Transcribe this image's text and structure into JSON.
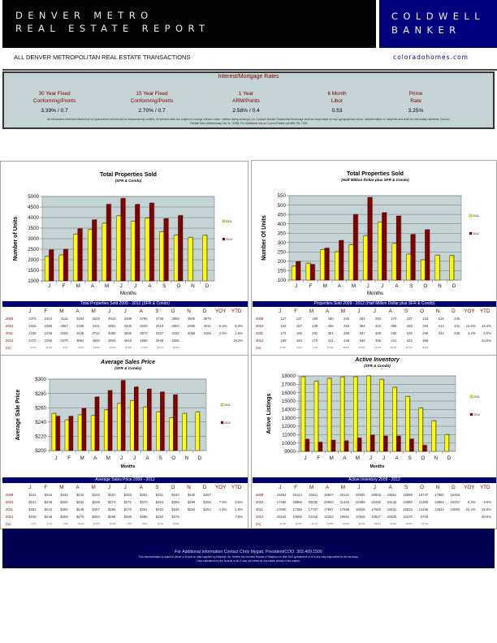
{
  "header": {
    "title_line1": "DENVER METRO",
    "title_line2": "REAL ESTATE REPORT",
    "brand_line1": "COLDWELL",
    "brand_line2": "BANKER",
    "subtitle": "ALL DENVER METROPOLITAN REAL ESTATE TRANSACTIONS",
    "website": "coloradohomes.com"
  },
  "rates": {
    "title": "Interest/Mortgage Rates",
    "items": [
      {
        "line1": "30 Year Fixed",
        "line2": "Conforming/Points",
        "value": "3.39% / 0.7"
      },
      {
        "line1": "15 Year Fixed",
        "line2": "Conforming/Points",
        "value": "2.70% / 0.7"
      },
      {
        "line1": "1 Year",
        "line2": "ARM/Points",
        "value": "2.58% / 0.4"
      },
      {
        "line1": "6 Month",
        "line2": "Libor",
        "value": "0.53"
      },
      {
        "line1": "Prime",
        "line2": "Rate",
        "value": "3.25%"
      }
    ],
    "fine_print_line1": "All information deemed reliable but not guaranteed and should be independently verified. All interest rates are subject to change without notice. Neither listing broker(s) nor Coldwell Banker Residential Brokerage shall be responsible for any typographical errors, misinformation or misprints and shall be held totally harmless. Source:",
    "fine_print_line2": "Freddie Mac (Wednesday Dec 11, 2008). For Additional Info on Current Rates call 888-781-7425"
  },
  "colors": {
    "series_2011": "#ffff00",
    "series_2012": "#800000",
    "plot_bg": "#c4d3d3",
    "table_header": "#000070",
    "brand_blue": "#00007e"
  },
  "chart_data": [
    {
      "id": "total-sold",
      "type": "bar",
      "title": "Total Properties Sold",
      "subtitle": "(SFR & Condo)",
      "title_italic": false,
      "xlabel": "Months",
      "ylabel": "Number of Units",
      "categories": [
        "J",
        "F",
        "M",
        "A",
        "M",
        "J",
        "J",
        "A",
        "S",
        "O",
        "N",
        "D"
      ],
      "ylim": [
        1000,
        5000
      ],
      "yticks": [
        1000,
        1500,
        2000,
        2500,
        3000,
        3500,
        4000,
        4500,
        5000
      ],
      "ytick_labels": [
        "1000",
        "1500",
        "2000",
        "2500",
        "3000",
        "3500",
        "4000",
        "4500",
        "5000"
      ],
      "grid": true,
      "legend_position": "right",
      "series": [
        {
          "name": "2011",
          "values": [
            2158,
            2229,
            3209,
            3429,
            3732,
            4080,
            3825,
            3973,
            3327,
            3162,
            3058,
            3156
          ]
        },
        {
          "name": "2012",
          "values": [
            2470,
            2495,
            3475,
            3891,
            4625,
            4904,
            4619,
            4685,
            3949,
            4095,
            null,
            null
          ]
        }
      ]
    },
    {
      "id": "half-million-sold",
      "type": "bar",
      "title": "Total Properties Sold",
      "subtitle": "(Half Million Dollar plus SFR & Condo)",
      "title_italic": false,
      "xlabel": "Months",
      "ylabel": "Number Of Units",
      "categories": [
        "J",
        "F",
        "M",
        "A",
        "M",
        "J",
        "J",
        "A",
        "S",
        "O",
        "N",
        "D"
      ],
      "ylim": [
        100,
        550
      ],
      "yticks": [
        100,
        150,
        200,
        250,
        300,
        350,
        400,
        450,
        500,
        550
      ],
      "ytick_labels": [
        "100",
        "150",
        "200",
        "250",
        "300",
        "350",
        "400",
        "450",
        "500",
        "550"
      ],
      "grid": true,
      "legend_position": "right",
      "series": [
        {
          "name": "2011",
          "values": [
            174,
            189,
            262,
            251,
            288,
            337,
            408,
            295,
            238,
            208,
            232,
            230
          ]
        },
        {
          "name": "2012",
          "values": [
            199,
            183,
            270,
            311,
            449,
            540,
            459,
            441,
            343,
            368,
            null,
            null
          ]
        }
      ]
    },
    {
      "id": "avg-price",
      "type": "bar",
      "title": "Average Sales Price",
      "subtitle": "(SFR & Condo)",
      "title_italic": true,
      "xlabel": "Months",
      "ylabel": "Average Sale Price",
      "categories": [
        "J",
        "F",
        "M",
        "A",
        "M",
        "J",
        "J",
        "A",
        "S",
        "O",
        "N",
        "D"
      ],
      "ylim": [
        200,
        300
      ],
      "yticks": [
        200,
        220,
        240,
        260,
        280,
        300
      ],
      "ytick_labels": [
        "$200",
        "$220",
        "$240",
        "$260",
        "$280",
        "$300"
      ],
      "grid": true,
      "legend_position": "right",
      "series": [
        {
          "name": "2011",
          "values": [
            252,
            243,
            250,
            249,
            257,
            266,
            270,
            261,
            254,
            246,
            252,
            254
          ]
        },
        {
          "name": "2012",
          "values": [
            248,
            248,
            259,
            275,
            284,
            298,
            289,
            286,
            282,
            278,
            null,
            null
          ]
        }
      ]
    },
    {
      "id": "active-inventory",
      "type": "bar",
      "title": "Active Inventory",
      "subtitle": "(SFR & Condo)",
      "title_italic": true,
      "xlabel": "Months",
      "ylabel": "Active Listings",
      "categories": [
        "J",
        "F",
        "M",
        "A",
        "M",
        "J",
        "J",
        "A",
        "S",
        "O",
        "N",
        "D"
      ],
      "ylim": [
        9000,
        18000
      ],
      "yticks": [
        9000,
        10000,
        11000,
        12000,
        13000,
        14000,
        15000,
        16000,
        17000,
        18000
      ],
      "ytick_labels": [
        "9000",
        "10000",
        "11000",
        "12000",
        "13000",
        "14000",
        "15000",
        "16000",
        "17000",
        "18000"
      ],
      "grid": true,
      "legend_position": "right",
      "series": [
        {
          "name": "2011",
          "values": [
            17890,
            17358,
            17707,
            17847,
            17889,
            18026,
            17583,
            16631,
            15533,
            14156,
            12634,
            10993
          ]
        },
        {
          "name": "2012",
          "values": [
            10443,
            10086,
            10325,
            10254,
            10591,
            10925,
            10827,
            10826,
            10470,
            9719,
            null,
            null
          ]
        }
      ]
    }
  ],
  "tables": [
    {
      "title": "Total Properties Sold   2009 - 2012 (SFR & Condo)",
      "columns": [
        "J",
        "F",
        "M",
        "A",
        "M",
        "J",
        "J",
        "A",
        "S",
        "O",
        "N",
        "D",
        "YOY",
        "YTD"
      ],
      "rows": [
        {
          "label": "2009",
          "cells": [
            "2379",
            "2414",
            "3115",
            "3294",
            "3519",
            "4043",
            "4299",
            "3795",
            "3736",
            "3859",
            "3500",
            "3979",
            "",
            ""
          ]
        },
        {
          "label": "2010",
          "cells": [
            "2315",
            "2360",
            "3557",
            "4158",
            "4311",
            "3881",
            "3200",
            "3028",
            "2919",
            "2803",
            "2655",
            "3011",
            "-5.2%",
            "-5.3%"
          ]
        },
        {
          "label": "2011",
          "cells": [
            "2158",
            "2229",
            "3209",
            "3429",
            "3732",
            "4080",
            "3825",
            "3973",
            "3327",
            "3162",
            "3058",
            "3156",
            "2.8%",
            "1.6%"
          ]
        },
        {
          "label": "2012",
          "cells": [
            "2470",
            "2495",
            "3475",
            "3891",
            "4625",
            "4904",
            "4619",
            "4685",
            "3949",
            "4095",
            "",
            "",
            "",
            "19.2%"
          ]
        },
        {
          "label": "(%)",
          "cells": [
            "14.5%",
            "11.9%",
            "8.3%",
            "13.5%",
            "23.9%",
            "20.2%",
            "20.8%",
            "17.9%",
            "18.7%",
            "29.5%",
            "",
            "",
            "",
            ""
          ]
        }
      ]
    },
    {
      "title": "Properties Sold   2009 - 2012 (Half Million Dollar plus SFR & Condo)",
      "columns": [
        "J",
        "F",
        "M",
        "A",
        "M",
        "J",
        "J",
        "A",
        "S",
        "O",
        "N",
        "D",
        "YOY",
        "YTD"
      ],
      "rows": [
        {
          "label": "2009",
          "cells": [
            "127",
            "137",
            "190",
            "180",
            "240",
            "291",
            "293",
            "270",
            "237",
            "223",
            "215",
            "245",
            "",
            ""
          ]
        },
        {
          "label": "2010",
          "cells": [
            "163",
            "157",
            "249",
            "256",
            "253",
            "354",
            "315",
            "366",
            "259",
            "254",
            "214",
            "241",
            "12.5%",
            "15.4%"
          ]
        },
        {
          "label": "2011",
          "cells": [
            "174",
            "189",
            "262",
            "251",
            "288",
            "337",
            "408",
            "295",
            "238",
            "208",
            "232",
            "230",
            "4.4%",
            "5.0%"
          ]
        },
        {
          "label": "2012",
          "cells": [
            "199",
            "183",
            "270",
            "311",
            "449",
            "540",
            "459",
            "441",
            "343",
            "368",
            "",
            "",
            "",
            "34.5%"
          ]
        },
        {
          "label": "(%)",
          "cells": [
            "14.4%",
            "-3.2%",
            "3.1%",
            "23.9%",
            "55.9%",
            "60.2%",
            "12.5%",
            "49.5%",
            "44.1%",
            "76.9%",
            "",
            "",
            "",
            ""
          ]
        }
      ]
    },
    {
      "title": "Average Sales Price   2009 - 2012",
      "columns": [
        "J",
        "F",
        "M",
        "A",
        "M",
        "J",
        "J",
        "A",
        "S",
        "O",
        "N",
        "D",
        "YOY",
        "YTD"
      ],
      "rows": [
        {
          "label": "2009",
          "cells": [
            "$211",
            "$215",
            "$232",
            "$234",
            "$243",
            "$257",
            "$253",
            "$251",
            "$251",
            "$240",
            "$240",
            "$257",
            "",
            ""
          ]
        },
        {
          "label": "2010",
          "cells": [
            "$241",
            "$248",
            "$250",
            "$252",
            "$249",
            "$274",
            "$272",
            "$270",
            "$264",
            "$269",
            "$259",
            "$255",
            "7.6%",
            "6.5%"
          ]
        },
        {
          "label": "2011",
          "cells": [
            "$252",
            "$243",
            "$250",
            "$249",
            "$257",
            "$266",
            "$270",
            "$261",
            "$254",
            "$246",
            "$252",
            "$254",
            "-1.6%",
            "-1.6%"
          ]
        },
        {
          "label": "2012",
          "cells": [
            "$248",
            "$248",
            "$259",
            "$275",
            "$284",
            "$298",
            "$289",
            "$286",
            "$282",
            "$278",
            "",
            "",
            "",
            "7.8%"
          ]
        },
        {
          "label": "(%)",
          "cells": [
            "-1.6%",
            "2.1%",
            "3.6%",
            "10.4%",
            "10.5%",
            "12.0%",
            "7.0%",
            "9.6%",
            "11.0%",
            "13.0%",
            "",
            "",
            "",
            ""
          ]
        }
      ]
    },
    {
      "title": "Active Inventory   2009 - 2012",
      "columns": [
        "J",
        "F",
        "M",
        "A",
        "M",
        "J",
        "J",
        "A",
        "S",
        "O",
        "N",
        "D",
        "YOY",
        "YTD"
      ],
      "rows": [
        {
          "label": "2009",
          "cells": [
            "19454",
            "19124",
            "19611",
            "19947",
            "20121",
            "20506",
            "20503",
            "19651",
            "19099",
            "18737",
            "17990",
            "16493",
            "",
            ""
          ]
        },
        {
          "label": "2010",
          "cells": [
            "17465",
            "18989",
            "20030",
            "20943",
            "21433",
            "22699",
            "23450",
            "23146",
            "22880",
            "21360",
            "19891",
            "18257",
            "8.9%",
            "8.5%"
          ]
        },
        {
          "label": "2011",
          "cells": [
            "17890",
            "17358",
            "17707",
            "17847",
            "17889",
            "18026",
            "17583",
            "16631",
            "15533",
            "14156",
            "12634",
            "10993",
            "-22.4%",
            "-19.6%"
          ]
        },
        {
          "label": "2012",
          "cells": [
            "10443",
            "10086",
            "10325",
            "10254",
            "10591",
            "10925",
            "10827",
            "10826",
            "10470",
            "9719",
            "",
            "",
            "",
            "-39.9%"
          ]
        },
        {
          "label": "(%)",
          "cells": [
            "-41.6%",
            "-41.9%",
            "-41.7%",
            "-42.5%",
            "-40.8%",
            "-39.4%",
            "-38.4%",
            "-34.9%",
            "-32.6%",
            "-31.3%",
            "",
            "",
            "",
            ""
          ]
        }
      ]
    }
  ],
  "footer": {
    "contact": "For Additional Information Contact Chris Mygatt, President/COO. 303.409.1500",
    "fine_line1": "This representation is based in whole or in part on data supplied by Metrolist, Inc. Neither the member Boards of Realtors nor their MLS guarantees or is in any way responsible for its accuracy.",
    "fine_line2": "Data maintained by the Boards or MLS may not reflect all real estate activity in the market."
  }
}
